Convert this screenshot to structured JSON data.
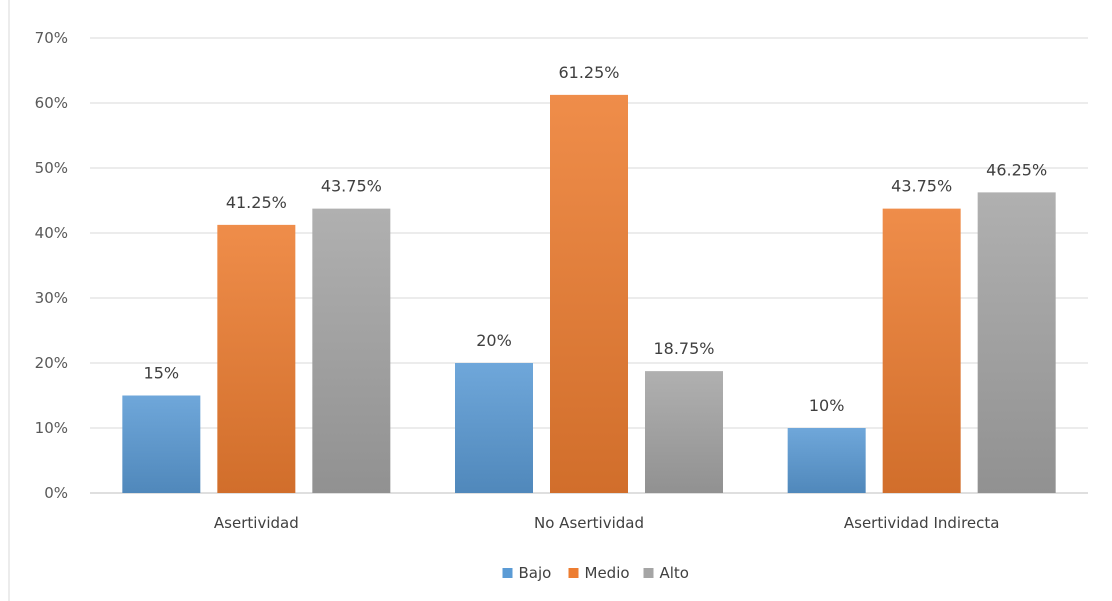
{
  "chart_data": {
    "type": "bar",
    "categories": [
      "Asertividad",
      "No Asertividad",
      "Asertividad Indirecta"
    ],
    "series": [
      {
        "name": "Bajo",
        "color": "#5B9BD5",
        "values": [
          15,
          20,
          10
        ],
        "labels": [
          "15%",
          "20%",
          "10%"
        ]
      },
      {
        "name": "Medio",
        "color": "#ED7D31",
        "values": [
          41.25,
          61.25,
          43.75
        ],
        "labels": [
          "41.25%",
          "61.25%",
          "43.75%"
        ]
      },
      {
        "name": "Alto",
        "color": "#A5A5A5",
        "values": [
          43.75,
          18.75,
          46.25
        ],
        "labels": [
          "43.75%",
          "18.75%",
          "46.25%"
        ]
      }
    ],
    "ylim": [
      0,
      70
    ],
    "yticks": [
      0,
      10,
      20,
      30,
      40,
      50,
      60,
      70
    ],
    "ytick_labels": [
      "0%",
      "10%",
      "20%",
      "30%",
      "40%",
      "50%",
      "60%",
      "70%"
    ],
    "grid": true,
    "legend": "bottom",
    "title": "",
    "xlabel": "",
    "ylabel": ""
  }
}
